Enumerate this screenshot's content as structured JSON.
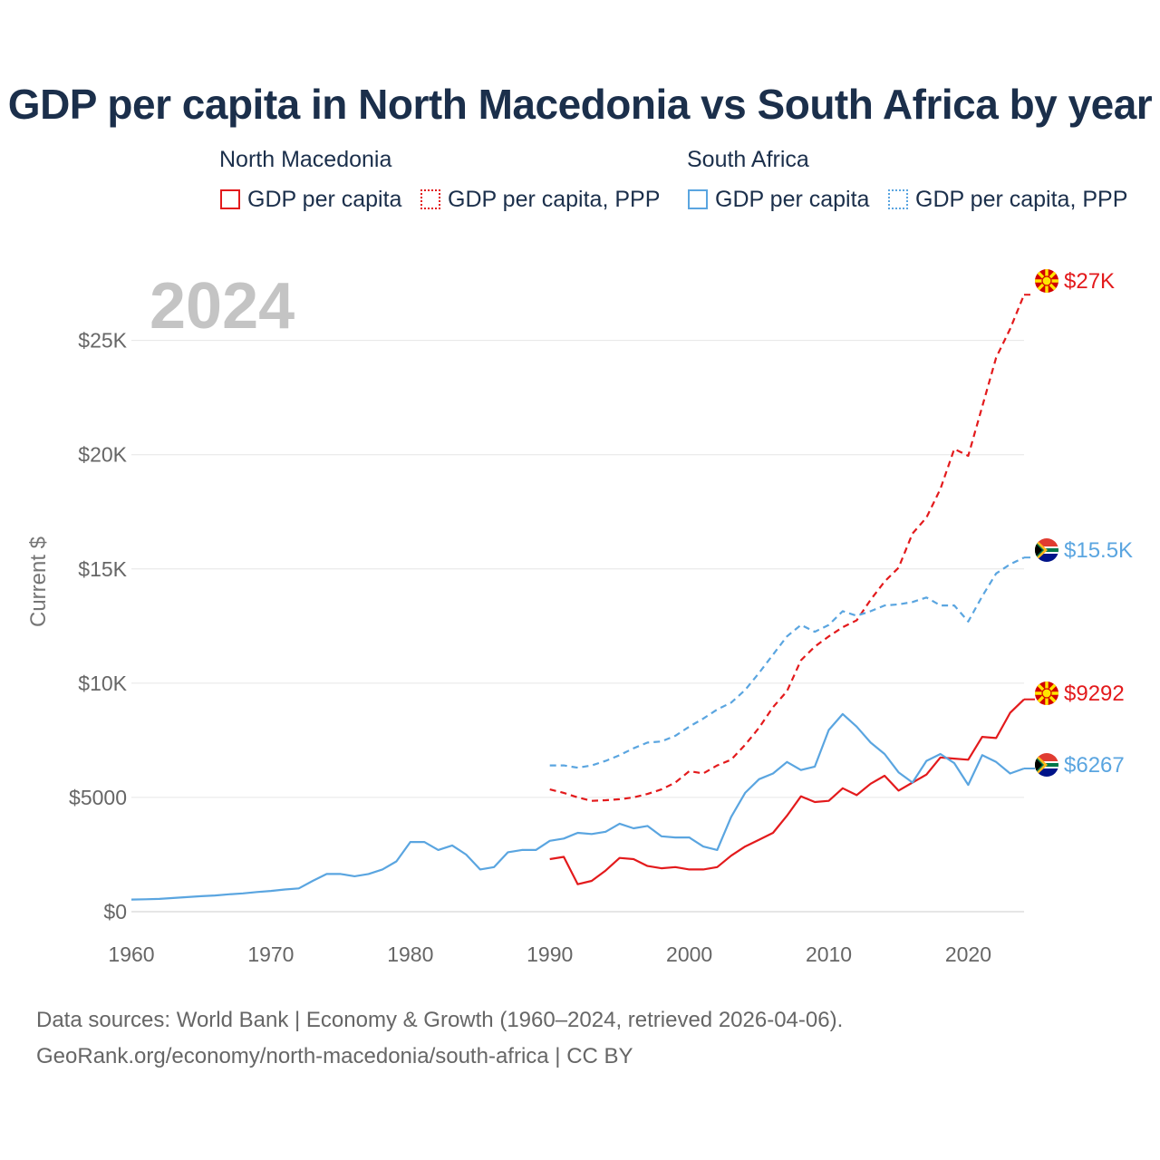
{
  "title": "GDP per capita in North Macedonia vs South Africa by year",
  "legend": {
    "groups": [
      {
        "name": "North Macedonia",
        "color": "#e31a1c",
        "items": [
          {
            "label": "GDP per capita",
            "style": "solid"
          },
          {
            "label": "GDP per capita, PPP",
            "style": "dotted"
          }
        ]
      },
      {
        "name": "South Africa",
        "color": "#5aa5e0",
        "items": [
          {
            "label": "GDP per capita",
            "style": "solid"
          },
          {
            "label": "GDP per capita, PPP",
            "style": "dotted"
          }
        ]
      }
    ]
  },
  "chart_data": {
    "type": "line",
    "title": "GDP per capita in North Macedonia vs South Africa by year",
    "watermark_year": "2024",
    "xlabel": "",
    "ylabel": "Current $",
    "xlim": [
      1960,
      2024
    ],
    "ylim": [
      0,
      28000
    ],
    "x_ticks": [
      1960,
      1970,
      1980,
      1990,
      2000,
      2010,
      2020
    ],
    "x_tick_labels": [
      "1960",
      "1970",
      "1980",
      "1990",
      "2000",
      "2010",
      "2020"
    ],
    "y_ticks": [
      0,
      5000,
      10000,
      15000,
      20000,
      25000
    ],
    "y_tick_labels": [
      "$0",
      "$5000",
      "$10K",
      "$15K",
      "$20K",
      "$25K"
    ],
    "grid": true,
    "series": [
      {
        "name": "North Macedonia GDP per capita, PPP",
        "country": "North Macedonia",
        "color": "#e31a1c",
        "dash": "dashed",
        "end_label": "$27K",
        "x": [
          1990,
          1991,
          1992,
          1993,
          1994,
          1995,
          1996,
          1997,
          1998,
          1999,
          2000,
          2001,
          2002,
          2003,
          2004,
          2005,
          2006,
          2007,
          2008,
          2009,
          2010,
          2011,
          2012,
          2013,
          2014,
          2015,
          2016,
          2017,
          2018,
          2019,
          2020,
          2021,
          2022,
          2023,
          2024
        ],
        "values": [
          5350,
          5200,
          5000,
          4850,
          4880,
          4920,
          5000,
          5150,
          5350,
          5650,
          6150,
          6050,
          6400,
          6650,
          7300,
          8050,
          8950,
          9650,
          11000,
          11600,
          12050,
          12450,
          12750,
          13650,
          14450,
          15050,
          16550,
          17250,
          18500,
          20250,
          19950,
          22100,
          24250,
          25500,
          27000
        ]
      },
      {
        "name": "South Africa GDP per capita, PPP",
        "country": "South Africa",
        "color": "#5aa5e0",
        "dash": "dashed",
        "end_label": "$15.5K",
        "x": [
          1990,
          1991,
          1992,
          1993,
          1994,
          1995,
          1996,
          1997,
          1998,
          1999,
          2000,
          2001,
          2002,
          2003,
          2004,
          2005,
          2006,
          2007,
          2008,
          2009,
          2010,
          2011,
          2012,
          2013,
          2014,
          2015,
          2016,
          2017,
          2018,
          2019,
          2020,
          2021,
          2022,
          2023,
          2024
        ],
        "values": [
          6400,
          6400,
          6300,
          6400,
          6600,
          6850,
          7150,
          7400,
          7450,
          7700,
          8100,
          8450,
          8850,
          9150,
          9700,
          10450,
          11250,
          12050,
          12550,
          12250,
          12550,
          13150,
          12950,
          13150,
          13400,
          13450,
          13550,
          13750,
          13400,
          13400,
          12700,
          13800,
          14800,
          15200,
          15500
        ]
      },
      {
        "name": "North Macedonia GDP per capita",
        "country": "North Macedonia",
        "color": "#e31a1c",
        "dash": "solid",
        "end_label": "$9292",
        "x": [
          1990,
          1991,
          1992,
          1993,
          1994,
          1995,
          1996,
          1997,
          1998,
          1999,
          2000,
          2001,
          2002,
          2003,
          2004,
          2005,
          2006,
          2007,
          2008,
          2009,
          2010,
          2011,
          2012,
          2013,
          2014,
          2015,
          2016,
          2017,
          2018,
          2019,
          2020,
          2021,
          2022,
          2023,
          2024
        ],
        "values": [
          2300,
          2400,
          1200,
          1350,
          1800,
          2350,
          2300,
          2000,
          1900,
          1950,
          1850,
          1850,
          1950,
          2450,
          2850,
          3150,
          3450,
          4200,
          5050,
          4800,
          4850,
          5400,
          5100,
          5600,
          5950,
          5300,
          5650,
          6000,
          6750,
          6700,
          6650,
          7650,
          7600,
          8700,
          9292
        ]
      },
      {
        "name": "South Africa GDP per capita",
        "country": "South Africa",
        "color": "#5aa5e0",
        "dash": "solid",
        "end_label": "$6267",
        "x": [
          1960,
          1961,
          1962,
          1963,
          1964,
          1965,
          1966,
          1967,
          1968,
          1969,
          1970,
          1971,
          1972,
          1973,
          1974,
          1975,
          1976,
          1977,
          1978,
          1979,
          1980,
          1981,
          1982,
          1983,
          1984,
          1985,
          1986,
          1987,
          1988,
          1989,
          1990,
          1991,
          1992,
          1993,
          1994,
          1995,
          1996,
          1997,
          1998,
          1999,
          2000,
          2001,
          2002,
          2003,
          2004,
          2005,
          2006,
          2007,
          2008,
          2009,
          2010,
          2011,
          2012,
          2013,
          2014,
          2015,
          2016,
          2017,
          2018,
          2019,
          2020,
          2021,
          2022,
          2023,
          2024
        ],
        "values": [
          530,
          545,
          560,
          600,
          640,
          680,
          710,
          760,
          800,
          860,
          910,
          970,
          1020,
          1350,
          1650,
          1650,
          1550,
          1650,
          1850,
          2200,
          3050,
          3050,
          2700,
          2900,
          2500,
          1850,
          1950,
          2600,
          2700,
          2700,
          3100,
          3200,
          3450,
          3400,
          3500,
          3850,
          3650,
          3750,
          3300,
          3250,
          3250,
          2850,
          2700,
          4150,
          5200,
          5800,
          6050,
          6550,
          6200,
          6350,
          7950,
          8650,
          8100,
          7400,
          6900,
          6100,
          5650,
          6600,
          6900,
          6500,
          5550,
          6850,
          6550,
          6050,
          6267
        ]
      }
    ]
  },
  "footer": {
    "line1": "Data sources: World Bank | Economy & Growth (1960–2024, retrieved 2026-04-06).",
    "line2": "GeoRank.org/economy/north-macedonia/south-africa | CC BY"
  }
}
